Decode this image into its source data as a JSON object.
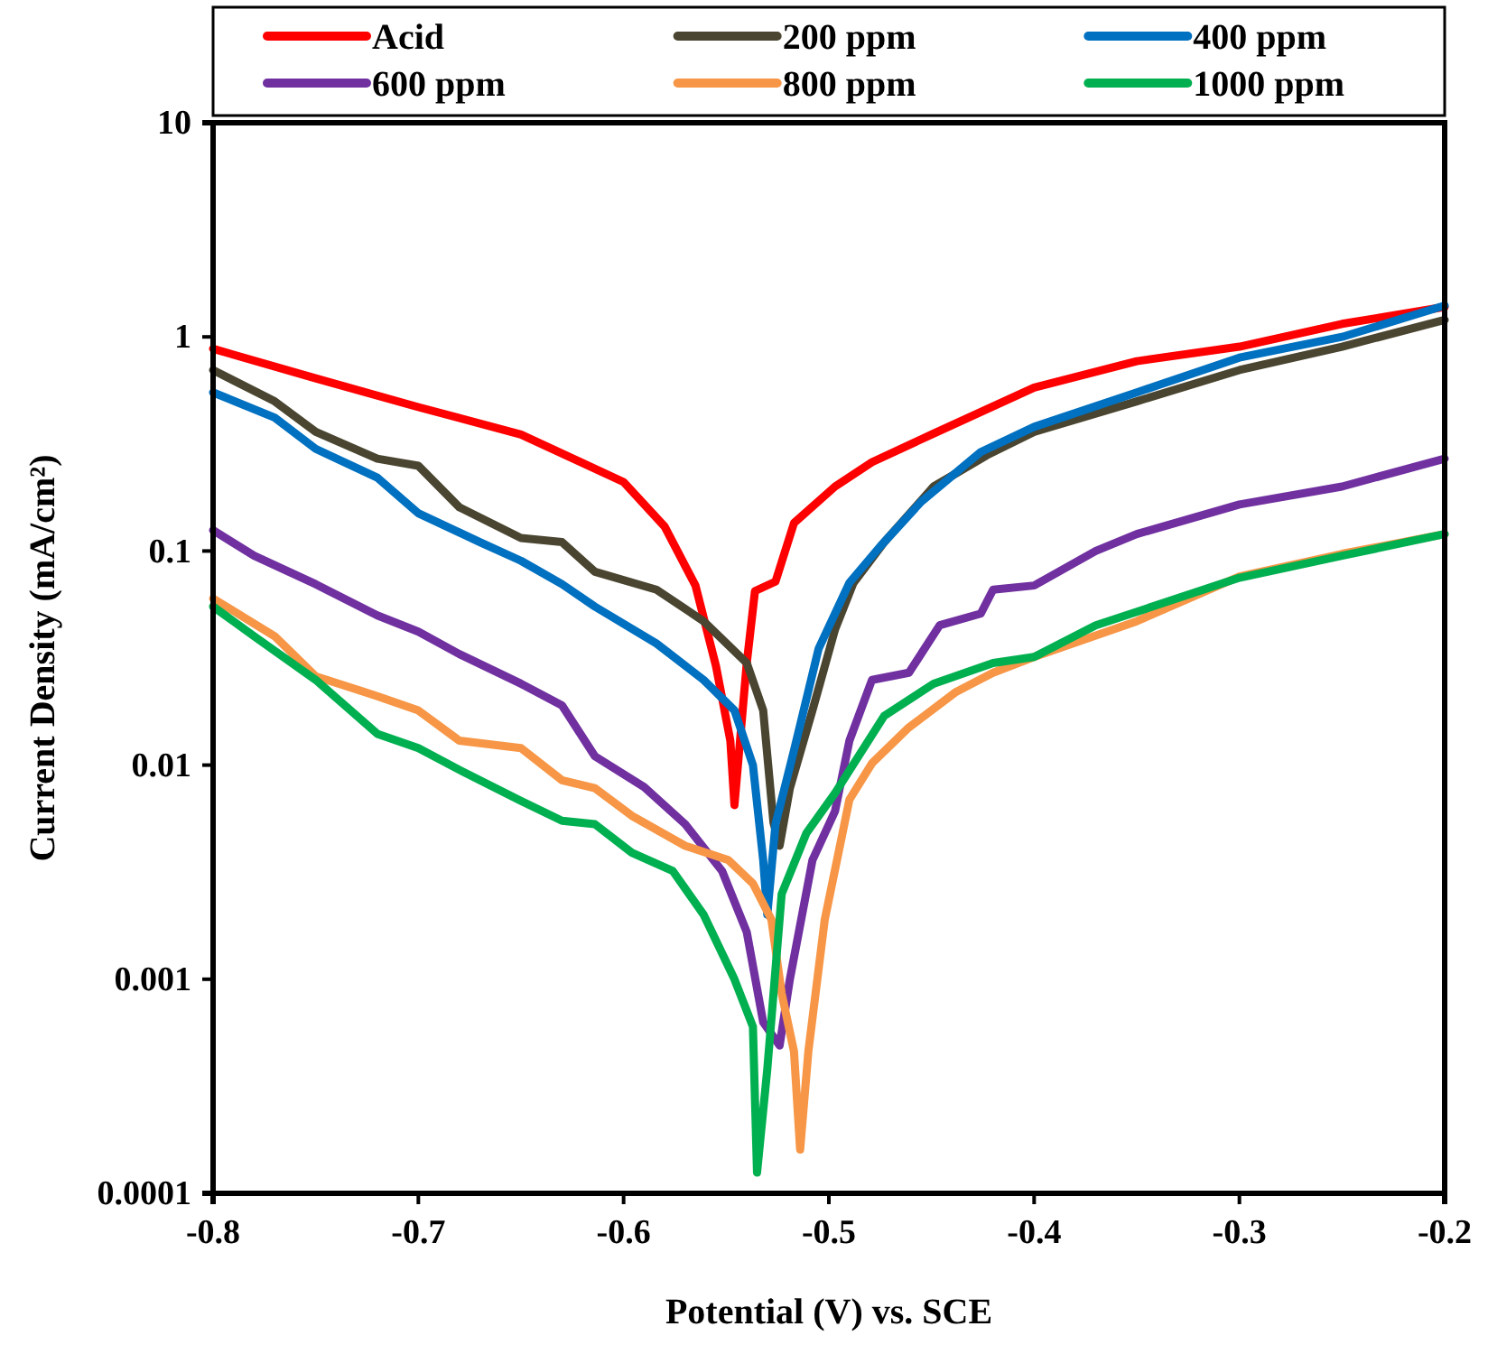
{
  "chart_data": {
    "type": "line",
    "xlabel": "Potential (V) vs. SCE",
    "ylabel": "Current Density (mA/cm²)",
    "log": "y",
    "grid": false,
    "legend": "top",
    "marker": "none",
    "line_style": "solid",
    "xlim": [
      -0.8,
      -0.2
    ],
    "xticks": [
      -0.8,
      -0.7,
      -0.6,
      -0.5,
      -0.4,
      -0.3,
      -0.2
    ],
    "ylim": [
      0.0001,
      10
    ],
    "yticks": [
      0.0001,
      0.001,
      0.01,
      0.1,
      1,
      10
    ],
    "series": [
      {
        "name": "Acid",
        "color": "#ff0000",
        "x": [
          -0.8,
          -0.75,
          -0.7,
          -0.65,
          -0.6,
          -0.58,
          -0.565,
          -0.555,
          -0.548,
          -0.546,
          -0.54,
          -0.536,
          -0.526,
          -0.517,
          -0.497,
          -0.479,
          -0.45,
          -0.4,
          -0.35,
          -0.3,
          -0.25,
          -0.2
        ],
        "values": [
          0.88,
          0.64,
          0.47,
          0.35,
          0.21,
          0.13,
          0.069,
          0.029,
          0.013,
          0.0065,
          0.03,
          0.065,
          0.072,
          0.135,
          0.2,
          0.26,
          0.35,
          0.58,
          0.77,
          0.9,
          1.15,
          1.38
        ]
      },
      {
        "name": "200 ppm",
        "color": "#4a4530",
        "x": [
          -0.8,
          -0.77,
          -0.75,
          -0.72,
          -0.7,
          -0.68,
          -0.65,
          -0.63,
          -0.614,
          -0.584,
          -0.561,
          -0.54,
          -0.532,
          -0.527,
          -0.524,
          -0.519,
          -0.508,
          -0.497,
          -0.488,
          -0.473,
          -0.449,
          -0.423,
          -0.4,
          -0.35,
          -0.3,
          -0.25,
          -0.2
        ],
        "values": [
          0.7,
          0.5,
          0.36,
          0.27,
          0.25,
          0.16,
          0.115,
          0.11,
          0.08,
          0.066,
          0.047,
          0.03,
          0.018,
          0.0054,
          0.0042,
          0.0078,
          0.018,
          0.043,
          0.071,
          0.11,
          0.2,
          0.28,
          0.36,
          0.5,
          0.7,
          0.9,
          1.2
        ]
      },
      {
        "name": "400 ppm",
        "color": "#0070c0",
        "x": [
          -0.8,
          -0.77,
          -0.75,
          -0.72,
          -0.7,
          -0.67,
          -0.65,
          -0.63,
          -0.614,
          -0.584,
          -0.561,
          -0.546,
          -0.537,
          -0.532,
          -0.53,
          -0.526,
          -0.517,
          -0.505,
          -0.49,
          -0.475,
          -0.455,
          -0.426,
          -0.4,
          -0.35,
          -0.3,
          -0.25,
          -0.2
        ],
        "values": [
          0.55,
          0.42,
          0.3,
          0.22,
          0.15,
          0.11,
          0.09,
          0.07,
          0.055,
          0.037,
          0.025,
          0.018,
          0.01,
          0.0036,
          0.002,
          0.0053,
          0.0117,
          0.035,
          0.071,
          0.105,
          0.17,
          0.29,
          0.38,
          0.55,
          0.8,
          1.0,
          1.4
        ]
      },
      {
        "name": "600 ppm",
        "color": "#7030a0",
        "x": [
          -0.8,
          -0.78,
          -0.75,
          -0.72,
          -0.7,
          -0.68,
          -0.65,
          -0.63,
          -0.614,
          -0.59,
          -0.57,
          -0.552,
          -0.54,
          -0.532,
          -0.524,
          -0.519,
          -0.508,
          -0.497,
          -0.49,
          -0.479,
          -0.461,
          -0.446,
          -0.426,
          -0.42,
          -0.4,
          -0.37,
          -0.35,
          -0.3,
          -0.25,
          -0.2
        ],
        "values": [
          0.125,
          0.095,
          0.07,
          0.05,
          0.042,
          0.033,
          0.024,
          0.019,
          0.011,
          0.0079,
          0.0053,
          0.0032,
          0.00166,
          0.00063,
          0.00049,
          0.001,
          0.0036,
          0.0061,
          0.013,
          0.025,
          0.027,
          0.045,
          0.051,
          0.066,
          0.069,
          0.1,
          0.12,
          0.165,
          0.2,
          0.27
        ]
      },
      {
        "name": "800 ppm",
        "color": "#f79646",
        "x": [
          -0.8,
          -0.77,
          -0.75,
          -0.72,
          -0.7,
          -0.68,
          -0.65,
          -0.63,
          -0.614,
          -0.596,
          -0.57,
          -0.549,
          -0.537,
          -0.528,
          -0.523,
          -0.517,
          -0.514,
          -0.51,
          -0.502,
          -0.49,
          -0.479,
          -0.461,
          -0.438,
          -0.42,
          -0.4,
          -0.35,
          -0.3,
          -0.25,
          -0.2
        ],
        "values": [
          0.06,
          0.04,
          0.026,
          0.021,
          0.018,
          0.013,
          0.012,
          0.0085,
          0.0078,
          0.0058,
          0.0042,
          0.0036,
          0.0028,
          0.0019,
          0.00086,
          0.00046,
          0.00016,
          0.00046,
          0.0019,
          0.0069,
          0.0102,
          0.015,
          0.022,
          0.027,
          0.032,
          0.047,
          0.076,
          0.097,
          0.12
        ]
      },
      {
        "name": "1000 ppm",
        "color": "#00b050",
        "x": [
          -0.8,
          -0.78,
          -0.75,
          -0.72,
          -0.7,
          -0.68,
          -0.65,
          -0.63,
          -0.614,
          -0.596,
          -0.576,
          -0.561,
          -0.546,
          -0.537,
          -0.535,
          -0.53,
          -0.523,
          -0.511,
          -0.497,
          -0.473,
          -0.449,
          -0.42,
          -0.4,
          -0.37,
          -0.35,
          -0.3,
          -0.25,
          -0.2
        ],
        "values": [
          0.055,
          0.04,
          0.025,
          0.014,
          0.012,
          0.0095,
          0.0068,
          0.0055,
          0.0053,
          0.0039,
          0.0032,
          0.002,
          0.001,
          0.0006,
          0.000125,
          0.00038,
          0.0025,
          0.0048,
          0.0074,
          0.017,
          0.024,
          0.03,
          0.032,
          0.045,
          0.052,
          0.075,
          0.095,
          0.12
        ]
      }
    ]
  }
}
